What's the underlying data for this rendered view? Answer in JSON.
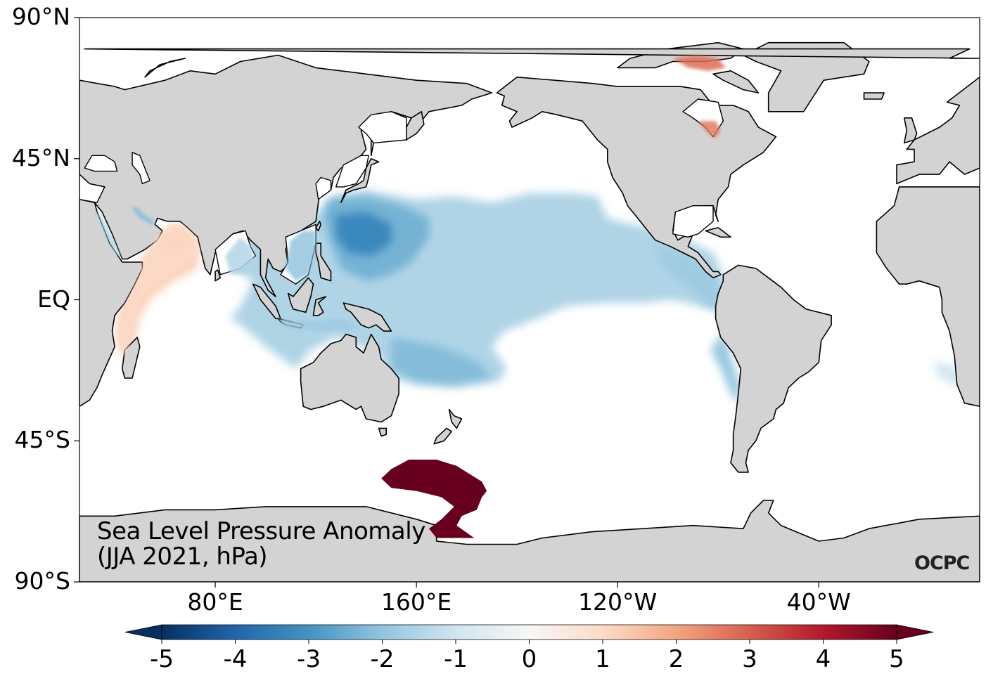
{
  "title_line1": "Sea Level Pressure Anomaly",
  "title_line2": "(JJA 2021, hPa)",
  "logo": "OCPC",
  "colors": {
    "land": "#d3d3d3",
    "coast": "#000000",
    "ocean": "#ffffff",
    "frame": "#000000"
  },
  "lat_ticks": [
    {
      "label": "90°N",
      "lat": 90
    },
    {
      "label": "45°N",
      "lat": 45
    },
    {
      "label": "EQ",
      "lat": 0
    },
    {
      "label": "45°S",
      "lat": -45
    },
    {
      "label": "90°S",
      "lat": -90
    }
  ],
  "lon_ticks": [
    {
      "label": "80°E",
      "lon": 80
    },
    {
      "label": "160°E",
      "lon": 160
    },
    {
      "label": "120°W",
      "lon": 240
    },
    {
      "label": "40°W",
      "lon": 320
    }
  ],
  "colorbar": {
    "min": -5,
    "max": 5,
    "extend": "both",
    "ticks": [
      "-5",
      "-4",
      "-3",
      "-2",
      "-1",
      "0",
      "1",
      "2",
      "3",
      "4",
      "5"
    ],
    "cmap": "RdBu_r",
    "stops": [
      "#053061",
      "#2166ac",
      "#4393c3",
      "#92c5de",
      "#d1e5f0",
      "#f7f7f7",
      "#fddbc7",
      "#f4a582",
      "#d6604d",
      "#b2182b",
      "#67001f"
    ]
  },
  "chart_data": {
    "type": "heatmap",
    "title": "Sea Level Pressure Anomaly (JJA 2021, hPa)",
    "projection": "PlateCarree, central longitude ~205°E",
    "lon_range": [
      26,
      384
    ],
    "lat_range": [
      -90,
      90
    ],
    "units": "hPa",
    "color_range": [
      -5,
      5
    ],
    "anomaly_regions": [
      {
        "name": "Western North Pacific (Philippine Sea)",
        "lon": [
          125,
          160
        ],
        "lat": [
          10,
          30
        ],
        "value": -3.0
      },
      {
        "name": "Tropical North Pacific band",
        "lon": [
          160,
          255
        ],
        "lat": [
          5,
          30
        ],
        "value": -1.8
      },
      {
        "name": "Maritime Continent / SW Pacific",
        "lon": [
          95,
          175
        ],
        "lat": [
          -25,
          5
        ],
        "value": -1.7
      },
      {
        "name": "Eastern tropical Pacific",
        "lon": [
          255,
          282
        ],
        "lat": [
          -5,
          15
        ],
        "value": -1.5
      },
      {
        "name": "Coast of Chile",
        "lon": [
          280,
          290
        ],
        "lat": [
          -30,
          -20
        ],
        "value": -2.0
      },
      {
        "name": "South-east Atlantic",
        "lon": [
          370,
          380
        ],
        "lat": [
          -28,
          -20
        ],
        "value": -1.0
      },
      {
        "name": "Arabian Sea / W Indian Ocean",
        "lon": [
          40,
          75
        ],
        "lat": [
          -25,
          22
        ],
        "value": 1.0
      },
      {
        "name": "Red Sea / Persian Gulf",
        "lon": [
          35,
          56
        ],
        "lat": [
          12,
          28
        ],
        "value": -1.5
      },
      {
        "name": "Canadian Arctic Archipelago",
        "lon": [
          265,
          285
        ],
        "lat": [
          70,
          78
        ],
        "value": 3.0
      },
      {
        "name": "Hudson Bay (south)",
        "lon": [
          275,
          283
        ],
        "lat": [
          52,
          57
        ],
        "value": 2.5
      },
      {
        "name": "Southern Ocean south of New Zealand",
        "lon": [
          150,
          195
        ],
        "lat": [
          -77,
          -52
        ],
        "value": 5.0
      }
    ]
  }
}
